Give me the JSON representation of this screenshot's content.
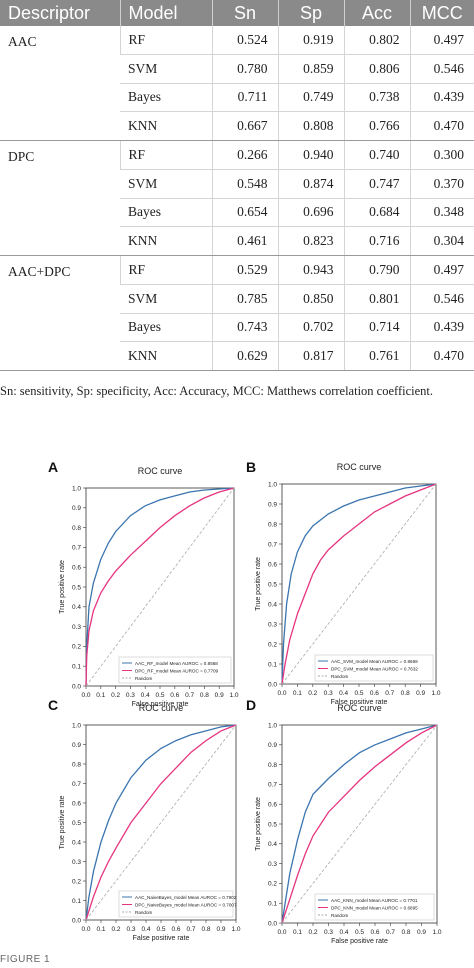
{
  "table": {
    "headers": [
      "Descriptor",
      "Model",
      "Sn",
      "Sp",
      "Acc",
      "MCC"
    ],
    "groups": [
      {
        "descriptor": "AAC",
        "rows": [
          {
            "model": "RF",
            "sn": "0.524",
            "sp": "0.919",
            "acc": "0.802",
            "mcc": "0.497"
          },
          {
            "model": "SVM",
            "sn": "0.780",
            "sp": "0.859",
            "acc": "0.806",
            "mcc": "0.546"
          },
          {
            "model": "Bayes",
            "sn": "0.711",
            "sp": "0.749",
            "acc": "0.738",
            "mcc": "0.439"
          },
          {
            "model": "KNN",
            "sn": "0.667",
            "sp": "0.808",
            "acc": "0.766",
            "mcc": "0.470"
          }
        ]
      },
      {
        "descriptor": "DPC",
        "rows": [
          {
            "model": "RF",
            "sn": "0.266",
            "sp": "0.940",
            "acc": "0.740",
            "mcc": "0.300"
          },
          {
            "model": "SVM",
            "sn": "0.548",
            "sp": "0.874",
            "acc": "0.747",
            "mcc": "0.370"
          },
          {
            "model": "Bayes",
            "sn": "0.654",
            "sp": "0.696",
            "acc": "0.684",
            "mcc": "0.348"
          },
          {
            "model": "KNN",
            "sn": "0.461",
            "sp": "0.823",
            "acc": "0.716",
            "mcc": "0.304"
          }
        ]
      },
      {
        "descriptor": "AAC+DPC",
        "rows": [
          {
            "model": "RF",
            "sn": "0.529",
            "sp": "0.943",
            "acc": "0.790",
            "mcc": "0.497"
          },
          {
            "model": "SVM",
            "sn": "0.785",
            "sp": "0.850",
            "acc": "0.801",
            "mcc": "0.546"
          },
          {
            "model": "Bayes",
            "sn": "0.743",
            "sp": "0.702",
            "acc": "0.714",
            "mcc": "0.439"
          },
          {
            "model": "KNN",
            "sn": "0.629",
            "sp": "0.817",
            "acc": "0.761",
            "mcc": "0.470"
          }
        ]
      }
    ]
  },
  "footnote": "Sn: sensitivity, Sp: specificity, Acc: Accuracy, MCC: Matthews correlation coefficient.",
  "chart_data": [
    {
      "type": "line",
      "panel": "A",
      "title": "ROC curve",
      "xlabel": "False positive rate",
      "ylabel": "True positive rate",
      "xlim": [
        0,
        1
      ],
      "ylim": [
        0,
        1
      ],
      "xticks": [
        "0.0",
        "0.1",
        "0.2",
        "0.3",
        "0.4",
        "0.5",
        "0.6",
        "0.7",
        "0.8",
        "0.9",
        "1.0"
      ],
      "yticks": [
        "0.0",
        "0.1",
        "0.2",
        "0.3",
        "0.4",
        "0.5",
        "0.6",
        "0.7",
        "0.8",
        "0.9",
        "1.0"
      ],
      "legend_position": "bottom-right",
      "series": [
        {
          "name": "AAC_RF_model Mean AUROC = 0.8568",
          "color": "#3b75af",
          "x": [
            0,
            0.005,
            0.02,
            0.05,
            0.1,
            0.15,
            0.2,
            0.3,
            0.4,
            0.5,
            0.6,
            0.7,
            0.8,
            0.9,
            1.0
          ],
          "y": [
            0,
            0.2,
            0.4,
            0.52,
            0.64,
            0.72,
            0.78,
            0.86,
            0.91,
            0.94,
            0.96,
            0.98,
            0.99,
            0.995,
            1.0
          ]
        },
        {
          "name": "DPC_RF_model Mean AUROC = 0.7709",
          "color": "#e6347f",
          "x": [
            0,
            0.005,
            0.02,
            0.05,
            0.1,
            0.15,
            0.2,
            0.3,
            0.4,
            0.5,
            0.6,
            0.7,
            0.8,
            0.9,
            1.0
          ],
          "y": [
            0,
            0.15,
            0.28,
            0.38,
            0.47,
            0.53,
            0.58,
            0.66,
            0.73,
            0.8,
            0.86,
            0.91,
            0.95,
            0.98,
            1.0
          ]
        },
        {
          "name": "Random",
          "color": "#aaaaaa",
          "dashed": true,
          "x": [
            0,
            1
          ],
          "y": [
            0,
            1
          ]
        }
      ]
    },
    {
      "type": "line",
      "panel": "B",
      "title": "ROC curve",
      "xlabel": "False positive rate",
      "ylabel": "True positive rate",
      "xlim": [
        0,
        1
      ],
      "ylim": [
        0,
        1
      ],
      "xticks": [
        "0.0",
        "0.1",
        "0.2",
        "0.3",
        "0.4",
        "0.5",
        "0.6",
        "0.7",
        "0.8",
        "0.9",
        "1.0"
      ],
      "yticks": [
        "0.0",
        "0.1",
        "0.2",
        "0.3",
        "0.4",
        "0.5",
        "0.6",
        "0.7",
        "0.8",
        "0.9",
        "1.0"
      ],
      "legend_position": "bottom-right",
      "series": [
        {
          "name": "AAC_SVM_model Mean AUROC = 0.8669",
          "color": "#3b75af",
          "x": [
            0,
            0.01,
            0.03,
            0.06,
            0.1,
            0.15,
            0.2,
            0.3,
            0.4,
            0.5,
            0.6,
            0.7,
            0.8,
            0.9,
            1.0
          ],
          "y": [
            0,
            0.2,
            0.4,
            0.55,
            0.66,
            0.74,
            0.79,
            0.85,
            0.89,
            0.92,
            0.94,
            0.96,
            0.98,
            0.99,
            1.0
          ]
        },
        {
          "name": "DPC_SVM_model Mean AUROC = 0.7632",
          "color": "#e6347f",
          "x": [
            0,
            0.02,
            0.05,
            0.1,
            0.15,
            0.2,
            0.25,
            0.3,
            0.4,
            0.5,
            0.6,
            0.7,
            0.8,
            0.9,
            1.0
          ],
          "y": [
            0,
            0.1,
            0.22,
            0.35,
            0.45,
            0.55,
            0.62,
            0.67,
            0.74,
            0.8,
            0.86,
            0.9,
            0.94,
            0.97,
            1.0
          ]
        },
        {
          "name": "Random",
          "color": "#aaaaaa",
          "dashed": true,
          "x": [
            0,
            1
          ],
          "y": [
            0,
            1
          ]
        }
      ]
    },
    {
      "type": "line",
      "panel": "C",
      "title": "ROC curve",
      "xlabel": "False positive rate",
      "ylabel": "True positive rate",
      "xlim": [
        0,
        1
      ],
      "ylim": [
        0,
        1
      ],
      "xticks": [
        "0.0",
        "0.1",
        "0.2",
        "0.3",
        "0.4",
        "0.5",
        "0.6",
        "0.7",
        "0.8",
        "0.9",
        "1.0"
      ],
      "yticks": [
        "0.0",
        "0.1",
        "0.2",
        "0.3",
        "0.4",
        "0.5",
        "0.6",
        "0.7",
        "0.8",
        "0.9",
        "1.0"
      ],
      "legend_position": "bottom-right",
      "series": [
        {
          "name": "AAC_NaiveBayes_model Mean AUROC = 0.7902",
          "color": "#3b75af",
          "x": [
            0,
            0.02,
            0.05,
            0.1,
            0.15,
            0.2,
            0.3,
            0.4,
            0.5,
            0.6,
            0.7,
            0.8,
            0.9,
            1.0
          ],
          "y": [
            0,
            0.12,
            0.25,
            0.4,
            0.51,
            0.6,
            0.73,
            0.82,
            0.88,
            0.92,
            0.95,
            0.97,
            0.99,
            1.0
          ]
        },
        {
          "name": "DPC_NaiveBayes_model Mean AUROC = 0.7007",
          "color": "#e6347f",
          "x": [
            0,
            0.05,
            0.1,
            0.15,
            0.2,
            0.3,
            0.4,
            0.5,
            0.6,
            0.7,
            0.8,
            0.9,
            1.0
          ],
          "y": [
            0,
            0.12,
            0.22,
            0.3,
            0.37,
            0.5,
            0.6,
            0.7,
            0.78,
            0.86,
            0.92,
            0.97,
            1.0
          ]
        },
        {
          "name": "Random",
          "color": "#aaaaaa",
          "dashed": true,
          "x": [
            0,
            1
          ],
          "y": [
            0,
            1
          ]
        }
      ]
    },
    {
      "type": "line",
      "panel": "D",
      "title": "ROC curve",
      "xlabel": "False positive rate",
      "ylabel": "True positive rate",
      "xlim": [
        0,
        1
      ],
      "ylim": [
        0,
        1
      ],
      "xticks": [
        "0.0",
        "0.1",
        "0.2",
        "0.3",
        "0.4",
        "0.5",
        "0.6",
        "0.7",
        "0.8",
        "0.9",
        "1.0"
      ],
      "yticks": [
        "0.0",
        "0.1",
        "0.2",
        "0.3",
        "0.4",
        "0.5",
        "0.6",
        "0.7",
        "0.8",
        "0.9",
        "1.0"
      ],
      "legend_position": "bottom-right",
      "series": [
        {
          "name": "AAC_KNN_model Mean AUROC = 0.7701",
          "color": "#3b75af",
          "x": [
            0,
            0.05,
            0.1,
            0.15,
            0.2,
            0.3,
            0.4,
            0.5,
            0.6,
            0.7,
            0.8,
            0.9,
            1.0
          ],
          "y": [
            0,
            0.25,
            0.42,
            0.56,
            0.65,
            0.73,
            0.8,
            0.86,
            0.9,
            0.93,
            0.96,
            0.98,
            1.0
          ]
        },
        {
          "name": "DPC_KNN_model Mean AUROC = 0.6895",
          "color": "#e6347f",
          "x": [
            0,
            0.05,
            0.1,
            0.15,
            0.2,
            0.3,
            0.4,
            0.5,
            0.6,
            0.7,
            0.8,
            0.9,
            1.0
          ],
          "y": [
            0,
            0.12,
            0.24,
            0.35,
            0.44,
            0.56,
            0.64,
            0.72,
            0.79,
            0.85,
            0.91,
            0.96,
            1.0
          ]
        },
        {
          "name": "Random",
          "color": "#aaaaaa",
          "dashed": true,
          "x": [
            0,
            1
          ],
          "y": [
            0,
            1
          ]
        }
      ]
    }
  ],
  "caption": "FIGURE 1"
}
